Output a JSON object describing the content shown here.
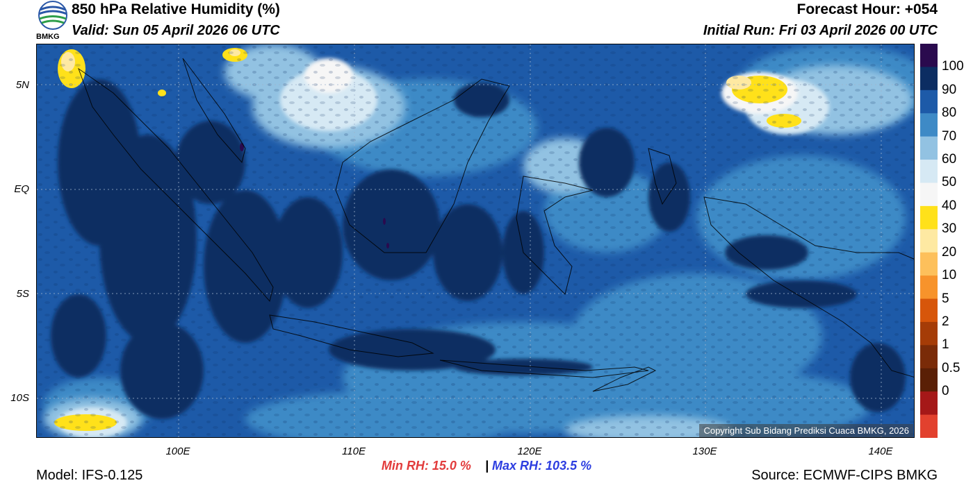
{
  "header": {
    "title": "850 hPa Relative Humidity (%)",
    "valid": "Valid: Sun 05 April 2026 06 UTC",
    "forecast_hour": "Forecast Hour: +054",
    "initial_run": "Initial Run: Fri 03 April 2026 00 UTC"
  },
  "logo": {
    "text": "BMKG",
    "icon": "bmkg-logo-icon"
  },
  "axes": {
    "lat_labels": [
      "5N",
      "EQ",
      "5S",
      "10S"
    ],
    "lon_labels": [
      "100E",
      "110E",
      "120E",
      "130E",
      "140E"
    ]
  },
  "colorbar": {
    "labels": [
      "100",
      "90",
      "80",
      "70",
      "60",
      "50",
      "40",
      "30",
      "20",
      "10",
      "5",
      "2",
      "1",
      "0.5",
      "0"
    ],
    "colors": [
      "#2a0a4e",
      "#0c2d62",
      "#1d5aa8",
      "#3e8ac6",
      "#92c2e2",
      "#d6e9f4",
      "#f6f6f6",
      "#ffe11a",
      "#fee9a2",
      "#fdc05b",
      "#f7932b",
      "#d7560a",
      "#a53c07",
      "#7a2b08",
      "#5a1f06",
      "#a51818",
      "#e2412e"
    ]
  },
  "stats": {
    "min_label": "Min RH:  15.0 %",
    "separator": "|",
    "max_label": "Max RH: 103.5 %"
  },
  "footer": {
    "model": "Model: IFS-0.125",
    "source": "Source: ECMWF-CIPS BMKG",
    "copyright": "Copyright Sub Bidang Prediksi Cuaca BMKG, 2026"
  }
}
